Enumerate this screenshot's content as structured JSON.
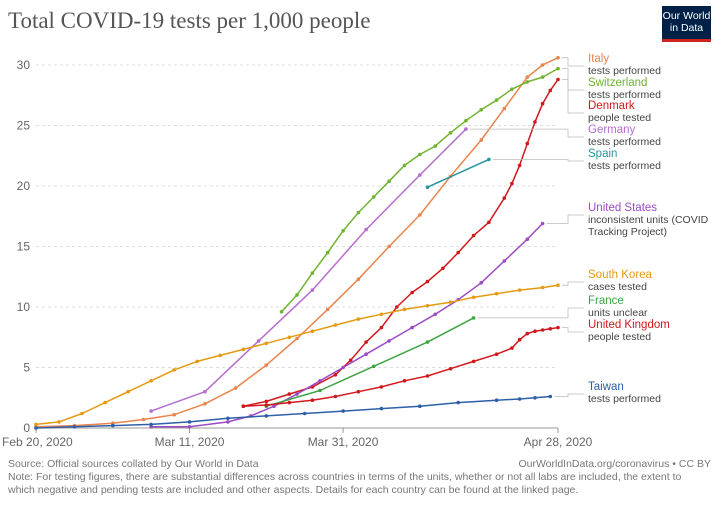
{
  "header": {
    "title": "Total COVID-19 tests per 1,000 people"
  },
  "logo": {
    "line1": "Our World",
    "line2": "in Data"
  },
  "footer": {
    "source": "Source: Official sources collated by Our World in Data",
    "url": "OurWorldInData.org/coronavirus • CC BY",
    "note": "Note: For testing figures, there are substantial differences across countries in terms of the units, whether or not all labs are included, the extent to which negative and pending tests are included and other aspects. Details for each country can be found at the linked page."
  },
  "chart_data": {
    "type": "line",
    "title": "Total COVID-19 tests per 1,000 people",
    "xlabel": "",
    "ylabel": "",
    "x_unit": "days since Feb 20, 2020",
    "xlim": [
      0,
      68
    ],
    "ylim": [
      0,
      30
    ],
    "y_ticks": [
      0,
      5,
      10,
      15,
      20,
      25,
      30
    ],
    "x_ticks": [
      {
        "day": 0,
        "label": "Feb 20, 2020"
      },
      {
        "day": 20,
        "label": "Mar 11, 2020"
      },
      {
        "day": 40,
        "label": "Mar 31, 2020"
      },
      {
        "day": 68,
        "label": "Apr 28, 2020"
      }
    ],
    "grid": "horizontal dashed",
    "series": [
      {
        "name": "Italy",
        "unit": "tests performed",
        "color": "#e8844c",
        "markers": true,
        "points": [
          [
            0,
            0.1
          ],
          [
            5,
            0.2
          ],
          [
            10,
            0.4
          ],
          [
            14,
            0.7
          ],
          [
            18,
            1.1
          ],
          [
            22,
            2.0
          ],
          [
            26,
            3.3
          ],
          [
            30,
            5.2
          ],
          [
            34,
            7.4
          ],
          [
            38,
            9.8
          ],
          [
            42,
            12.3
          ],
          [
            46,
            15.0
          ],
          [
            50,
            17.6
          ],
          [
            54,
            20.8
          ],
          [
            58,
            23.8
          ],
          [
            61,
            26.4
          ],
          [
            64,
            29.0
          ],
          [
            66,
            30.0
          ],
          [
            68,
            30.6
          ]
        ]
      },
      {
        "name": "Switzerland",
        "unit": "tests performed",
        "color": "#6fb32f",
        "markers": true,
        "points": [
          [
            32,
            9.6
          ],
          [
            34,
            11.0
          ],
          [
            36,
            12.8
          ],
          [
            38,
            14.5
          ],
          [
            40,
            16.3
          ],
          [
            42,
            17.8
          ],
          [
            44,
            19.1
          ],
          [
            46,
            20.4
          ],
          [
            48,
            21.7
          ],
          [
            50,
            22.6
          ],
          [
            52,
            23.3
          ],
          [
            54,
            24.4
          ],
          [
            56,
            25.4
          ],
          [
            58,
            26.3
          ],
          [
            60,
            27.1
          ],
          [
            62,
            28.0
          ],
          [
            64,
            28.6
          ],
          [
            66,
            29.0
          ],
          [
            68,
            29.7
          ]
        ]
      },
      {
        "name": "Denmark",
        "unit": "people tested",
        "color": "#d1191d",
        "markers": true,
        "points": [
          [
            27,
            1.8
          ],
          [
            30,
            2.2
          ],
          [
            33,
            2.8
          ],
          [
            36,
            3.4
          ],
          [
            39,
            4.4
          ],
          [
            41,
            5.6
          ],
          [
            43,
            7.1
          ],
          [
            45,
            8.3
          ],
          [
            47,
            10.0
          ],
          [
            49,
            11.2
          ],
          [
            51,
            12.1
          ],
          [
            53,
            13.2
          ],
          [
            55,
            14.5
          ],
          [
            57,
            15.9
          ],
          [
            59,
            17.0
          ],
          [
            61,
            19.0
          ],
          [
            62,
            20.2
          ],
          [
            63,
            21.7
          ],
          [
            64,
            23.5
          ],
          [
            65,
            25.3
          ],
          [
            66,
            26.8
          ],
          [
            67,
            27.9
          ],
          [
            68,
            28.8
          ]
        ]
      },
      {
        "name": "Germany",
        "unit": "tests performed",
        "color": "#b56dcc",
        "markers": true,
        "points": [
          [
            15,
            1.4
          ],
          [
            22,
            3.0
          ],
          [
            29,
            7.2
          ],
          [
            36,
            11.4
          ],
          [
            43,
            16.4
          ],
          [
            50,
            20.9
          ],
          [
            56,
            24.7
          ]
        ]
      },
      {
        "name": "Spain",
        "unit": "tests performed",
        "color": "#27959c",
        "markers": true,
        "points": [
          [
            51,
            19.9
          ],
          [
            59,
            22.2
          ]
        ]
      },
      {
        "name": "United States",
        "unit": "inconsistent units (COVID Tracking Project)",
        "color": "#9b4bc4",
        "markers": true,
        "points": [
          [
            15,
            0.1
          ],
          [
            20,
            0.1
          ],
          [
            25,
            0.5
          ],
          [
            28,
            1.0
          ],
          [
            31,
            1.8
          ],
          [
            34,
            2.8
          ],
          [
            37,
            3.9
          ],
          [
            40,
            5.0
          ],
          [
            43,
            6.1
          ],
          [
            46,
            7.2
          ],
          [
            49,
            8.3
          ],
          [
            52,
            9.4
          ],
          [
            55,
            10.6
          ],
          [
            58,
            12.0
          ],
          [
            61,
            13.8
          ],
          [
            64,
            15.6
          ],
          [
            66,
            16.9
          ]
        ]
      },
      {
        "name": "South Korea",
        "unit": "cases tested",
        "color": "#e49a12",
        "markers": true,
        "points": [
          [
            0,
            0.3
          ],
          [
            3,
            0.5
          ],
          [
            6,
            1.2
          ],
          [
            9,
            2.1
          ],
          [
            12,
            3.0
          ],
          [
            15,
            3.9
          ],
          [
            18,
            4.8
          ],
          [
            21,
            5.5
          ],
          [
            24,
            6.0
          ],
          [
            27,
            6.5
          ],
          [
            30,
            7.0
          ],
          [
            33,
            7.5
          ],
          [
            36,
            8.0
          ],
          [
            39,
            8.5
          ],
          [
            42,
            9.0
          ],
          [
            45,
            9.4
          ],
          [
            48,
            9.8
          ],
          [
            51,
            10.1
          ],
          [
            54,
            10.4
          ],
          [
            57,
            10.8
          ],
          [
            60,
            11.1
          ],
          [
            63,
            11.4
          ],
          [
            66,
            11.6
          ],
          [
            68,
            11.8
          ]
        ]
      },
      {
        "name": "France",
        "unit": "units unclear",
        "color": "#3ea341",
        "markers": true,
        "points": [
          [
            30,
            1.8
          ],
          [
            37,
            3.1
          ],
          [
            44,
            5.1
          ],
          [
            51,
            7.1
          ],
          [
            57,
            9.1
          ]
        ]
      },
      {
        "name": "United Kingdom",
        "unit": "people tested",
        "color": "#d1191d",
        "markers": true,
        "points": [
          [
            27,
            1.8
          ],
          [
            30,
            1.9
          ],
          [
            33,
            2.1
          ],
          [
            36,
            2.3
          ],
          [
            39,
            2.6
          ],
          [
            42,
            3.0
          ],
          [
            45,
            3.4
          ],
          [
            48,
            3.9
          ],
          [
            51,
            4.3
          ],
          [
            54,
            4.9
          ],
          [
            57,
            5.5
          ],
          [
            60,
            6.1
          ],
          [
            62,
            6.6
          ],
          [
            63,
            7.3
          ],
          [
            64,
            7.8
          ],
          [
            65,
            8.0
          ],
          [
            66,
            8.1
          ],
          [
            67,
            8.2
          ],
          [
            68,
            8.3
          ]
        ]
      },
      {
        "name": "Taiwan",
        "unit": "tests performed",
        "color": "#2e5fa7",
        "markers": true,
        "points": [
          [
            0,
            0.0
          ],
          [
            5,
            0.1
          ],
          [
            10,
            0.2
          ],
          [
            15,
            0.3
          ],
          [
            20,
            0.5
          ],
          [
            25,
            0.8
          ],
          [
            30,
            1.0
          ],
          [
            35,
            1.2
          ],
          [
            40,
            1.4
          ],
          [
            45,
            1.6
          ],
          [
            50,
            1.8
          ],
          [
            55,
            2.1
          ],
          [
            60,
            2.3
          ],
          [
            63,
            2.4
          ],
          [
            65,
            2.5
          ],
          [
            67,
            2.6
          ]
        ]
      }
    ],
    "legend": [
      {
        "series": "Italy",
        "label": "Italy",
        "sub": [
          "tests performed"
        ]
      },
      {
        "series": "Switzerland",
        "label": "Switzerland",
        "sub": [
          "tests performed"
        ]
      },
      {
        "series": "Denmark",
        "label": "Denmark",
        "sub": [
          "people tested"
        ]
      },
      {
        "series": "Germany",
        "label": "Germany",
        "sub": [
          "tests performed"
        ]
      },
      {
        "series": "Spain",
        "label": "Spain",
        "sub": [
          "tests performed"
        ]
      },
      {
        "series": "United States",
        "label": "United States",
        "sub": [
          "inconsistent units (COVID",
          "Tracking Project)"
        ]
      },
      {
        "series": "South Korea",
        "label": "South Korea",
        "sub": [
          "cases tested"
        ]
      },
      {
        "series": "France",
        "label": "France",
        "sub": [
          "units unclear"
        ]
      },
      {
        "series": "United Kingdom",
        "label": "United Kingdom",
        "sub": [
          "people tested"
        ]
      },
      {
        "series": "Taiwan",
        "label": "Taiwan",
        "sub": [
          "tests performed"
        ]
      }
    ]
  }
}
